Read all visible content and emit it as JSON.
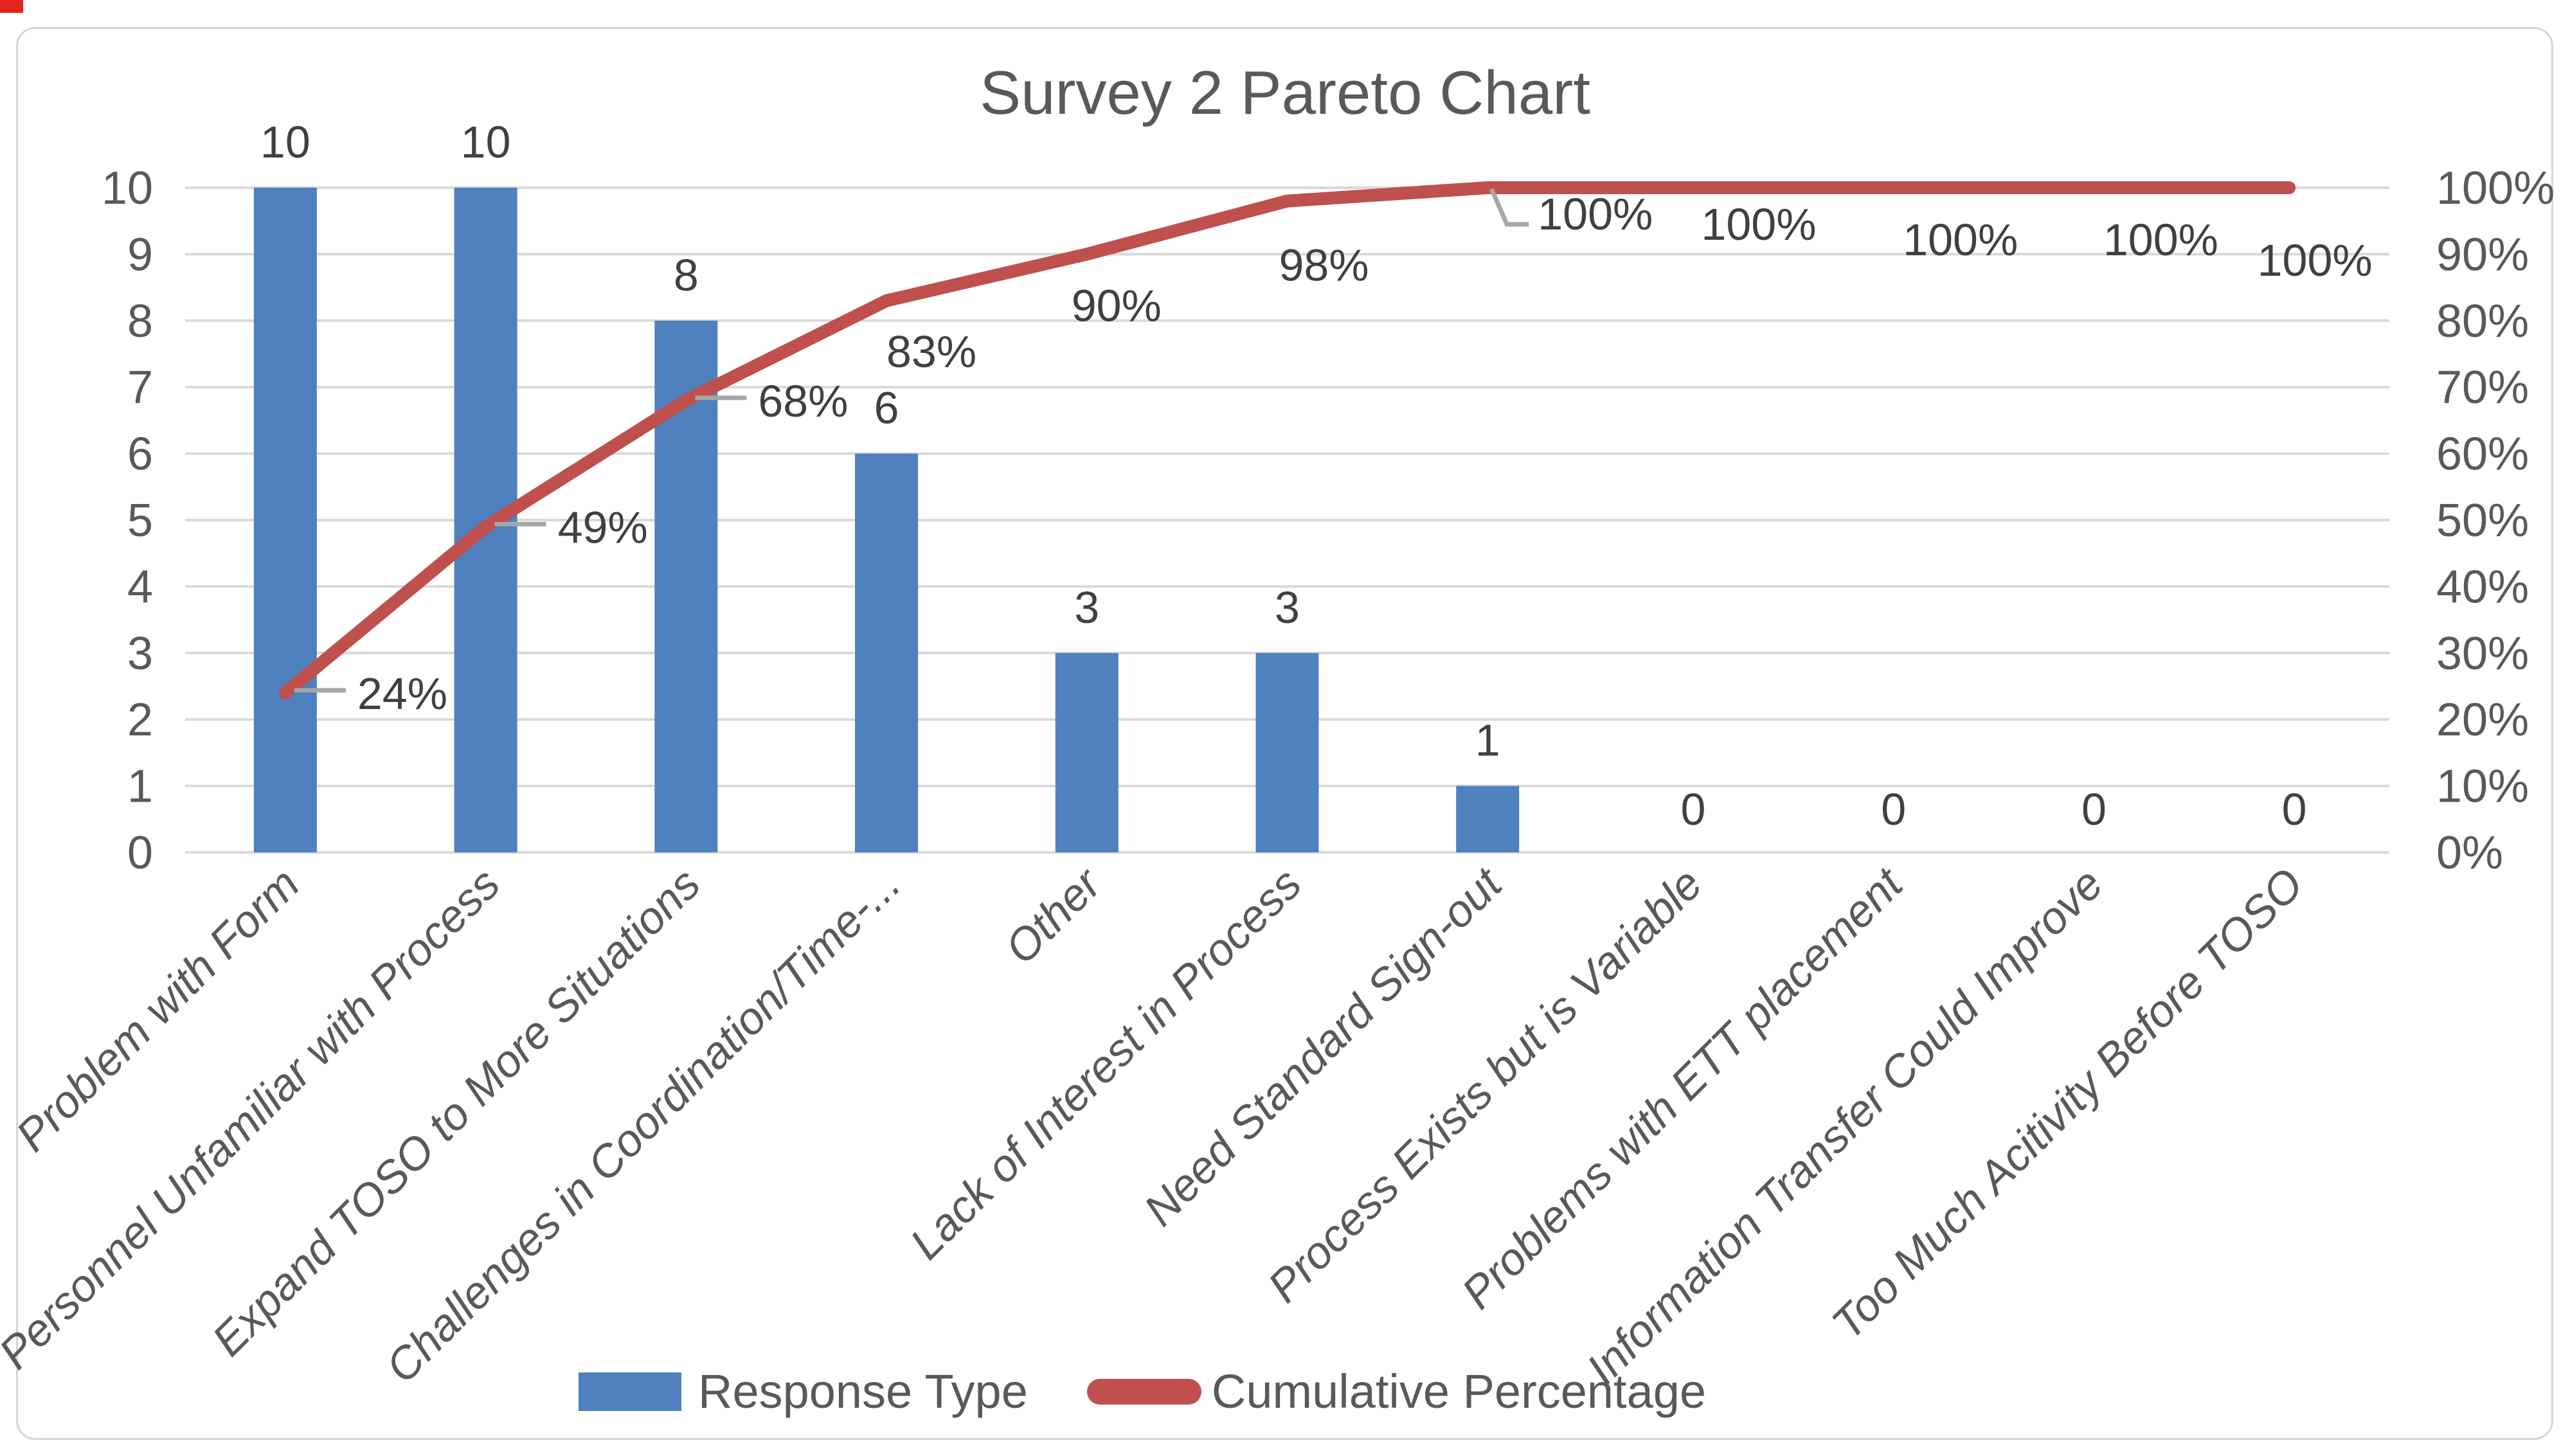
{
  "chart_data": {
    "type": "bar",
    "combo": "pareto (bar + cumulative line)",
    "title": "Survey 2 Pareto Chart",
    "categories": [
      "Problem with Form",
      "Personnel Unfamiliar with Process",
      "Expand TOSO to More Situations",
      "Challenges in Coordination/Time-...",
      "Other",
      "Lack of Interest in Process",
      "Need Standard Sign-out",
      "Process Exists but is Variable",
      "Problems with ETT placement",
      "Information Transfer Could Improve",
      "Too Much Acitivity Before TOSO"
    ],
    "series": [
      {
        "name": "Response Type",
        "type": "bar",
        "color": "#4e81bd",
        "values": [
          10,
          10,
          8,
          6,
          3,
          3,
          1,
          0,
          0,
          0,
          0
        ],
        "data_labels": [
          "10",
          "10",
          "8",
          "6",
          "3",
          "3",
          "1",
          "0",
          "0",
          "0",
          "0"
        ]
      },
      {
        "name": "Cumulative Percentage",
        "type": "line",
        "color": "#c0504d",
        "values": [
          24,
          49,
          68,
          83,
          90,
          98,
          100,
          100,
          100,
          100,
          100
        ],
        "data_labels": [
          "24%",
          "49%",
          "68%",
          "83%",
          "90%",
          "98%",
          "100%",
          "100%",
          "100%",
          "100%",
          "100%"
        ]
      }
    ],
    "left_axis": {
      "min": 0,
      "max": 10,
      "ticks": [
        "10",
        "9",
        "8",
        "7",
        "6",
        "5",
        "4",
        "3",
        "2",
        "1",
        "0"
      ]
    },
    "right_axis": {
      "min": 0,
      "max": 100,
      "ticks": [
        "100%",
        "90%",
        "80%",
        "70%",
        "60%",
        "50%",
        "40%",
        "30%",
        "20%",
        "10%",
        "0%"
      ]
    },
    "legend_position": "bottom",
    "gridlines": "horizontal",
    "colors": {
      "bar": "#4e81bd",
      "line": "#c0504d",
      "gridline": "#d9d9d9",
      "axis_text": "#595959",
      "data_label_text": "#404040",
      "category_text": "#595959",
      "title_text": "#595959",
      "leader_line": "#a6a6a6",
      "frame_border": "#d6d6d6",
      "corner_mark": "#e2251b"
    }
  }
}
